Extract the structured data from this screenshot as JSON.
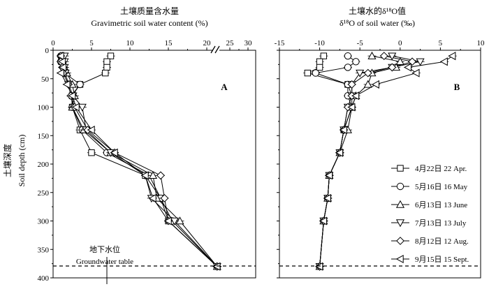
{
  "figure": {
    "panel_a": {
      "title_cn": "土壤质量含水量",
      "title_en": "Gravimetric soil water content (%)",
      "x_ticks": [
        "0",
        "5",
        "10",
        "15",
        "20",
        "25",
        "30"
      ],
      "panel_label": "A"
    },
    "panel_b": {
      "title_cn": "土壤水的δ¹⁸O值",
      "title_en": "δ¹⁸O of soil water (‰)",
      "x_ticks": [
        "-15",
        "-10",
        "-5",
        "0",
        "5",
        "10"
      ],
      "panel_label": "B"
    },
    "y_title_cn": "土壤深度",
    "y_title_en": "Soil depth (cm)",
    "y_ticks": [
      "0",
      "50",
      "100",
      "150",
      "200",
      "250",
      "300",
      "350",
      "400"
    ],
    "groundwater_cn": "地下水位",
    "groundwater_en": "Groundwater table",
    "legend": [
      {
        "label": "4月22日 22 Apr.",
        "marker": "square"
      },
      {
        "label": "5月16日 16 May",
        "marker": "circle"
      },
      {
        "label": "6月13日 13 June",
        "marker": "triangle-up"
      },
      {
        "label": "7月13日 13 July",
        "marker": "triangle-down"
      },
      {
        "label": "8月12日 12 Aug.",
        "marker": "diamond"
      },
      {
        "label": "9月15日 15 Sept.",
        "marker": "triangle-left"
      }
    ]
  },
  "chart_data": [
    {
      "type": "line",
      "panel": "A",
      "title": "Gravimetric soil water content (%)",
      "xlabel": "Gravimetric soil water content (%)",
      "ylabel": "Soil depth (cm)",
      "xlim": [
        0,
        30
      ],
      "x_axis_break_between": [
        20,
        25
      ],
      "ylim": [
        400,
        0
      ],
      "y_inverted": true,
      "groundwater_table_depth": 380,
      "depths": [
        10,
        20,
        30,
        40,
        60,
        80,
        100,
        140,
        180,
        220,
        260,
        300,
        380
      ],
      "series": [
        {
          "name": "4月22日 22 Apr.",
          "marker": "square",
          "values": [
            7.5,
            7.0,
            7.0,
            6.8,
            3.5,
            2.5,
            2.5,
            3.5,
            5.0,
            12.0,
            14.0,
            15.0,
            21.5
          ]
        },
        {
          "name": "5月16日 16 May",
          "marker": "circle",
          "values": [
            1.0,
            1.0,
            1.3,
            1.5,
            3.5,
            2.4,
            2.5,
            3.8,
            7.0,
            12.5,
            14.0,
            15.5,
            21.5
          ]
        },
        {
          "name": "6月13日 13 June",
          "marker": "triangle-up",
          "values": [
            1.2,
            1.2,
            1.5,
            1.8,
            2.5,
            2.8,
            2.5,
            4.0,
            7.5,
            13.0,
            13.5,
            16.5,
            21.5
          ]
        },
        {
          "name": "7月13日 13 July",
          "marker": "triangle-down",
          "values": [
            1.5,
            1.5,
            1.5,
            1.6,
            2.0,
            2.6,
            3.8,
            4.3,
            7.5,
            12.0,
            12.8,
            15.8,
            21.5
          ]
        },
        {
          "name": "8月12日 12 Aug.",
          "marker": "diamond",
          "values": [
            1.0,
            1.0,
            1.2,
            1.3,
            2.0,
            2.3,
            2.8,
            4.5,
            8.0,
            14.0,
            14.5,
            15.0,
            21.5
          ]
        },
        {
          "name": "9月15日 15 Sept.",
          "marker": "triangle-left",
          "values": [
            1.0,
            1.2,
            1.3,
            1.0,
            1.8,
            2.5,
            3.0,
            5.0,
            8.0,
            12.0,
            13.0,
            15.0,
            21.5
          ]
        }
      ]
    },
    {
      "type": "line",
      "panel": "B",
      "title": "δ¹⁸O of soil water (‰)",
      "xlabel": "δ¹⁸O of soil water (‰)",
      "ylabel": "Soil depth (cm)",
      "xlim": [
        -15,
        10
      ],
      "ylim": [
        400,
        0
      ],
      "y_inverted": true,
      "groundwater_table_depth": 380,
      "depths": [
        10,
        20,
        30,
        40,
        60,
        80,
        100,
        140,
        180,
        220,
        260,
        300,
        380
      ],
      "series": [
        {
          "name": "4月22日 22 Apr.",
          "marker": "square",
          "values": [
            -9.5,
            -10.0,
            -10.0,
            -11.5,
            -6.5,
            -6.0,
            -6.0,
            -7.0,
            -7.5,
            -8.8,
            -9.0,
            -9.5,
            -10.0
          ]
        },
        {
          "name": "5月16日 16 May",
          "marker": "circle",
          "values": [
            -6.5,
            -5.5,
            -6.5,
            -10.5,
            -6.5,
            -6.5,
            -6.0,
            -7.0,
            -7.5,
            -8.8,
            -9.0,
            -9.5,
            -10.0
          ]
        },
        {
          "name": "6月13日 13 June",
          "marker": "triangle-up",
          "values": [
            -3.5,
            0.0,
            -0.5,
            -3.5,
            -4.0,
            -5.5,
            -6.0,
            -6.5,
            -7.5,
            -8.8,
            -9.0,
            -9.5,
            -10.0
          ]
        },
        {
          "name": "7月13日 13 July",
          "marker": "triangle-down",
          "values": [
            -1.0,
            2.5,
            -1.0,
            -5.0,
            -6.0,
            -6.0,
            -6.5,
            -7.0,
            -7.5,
            -8.8,
            -9.0,
            -9.5,
            -10.0
          ]
        },
        {
          "name": "8月12日 12 Aug.",
          "marker": "diamond",
          "values": [
            -2.0,
            1.5,
            -1.0,
            -4.0,
            -6.0,
            -6.0,
            -6.5,
            -7.0,
            -7.5,
            -8.8,
            -9.0,
            -9.5,
            -10.0
          ]
        },
        {
          "name": "9月15日 15 Sept.",
          "marker": "triangle-left",
          "values": [
            6.5,
            5.5,
            1.0,
            2.0,
            -3.0,
            -5.5,
            -6.0,
            -7.0,
            -7.5,
            -8.8,
            -9.0,
            -9.5,
            -10.0
          ]
        }
      ]
    }
  ]
}
